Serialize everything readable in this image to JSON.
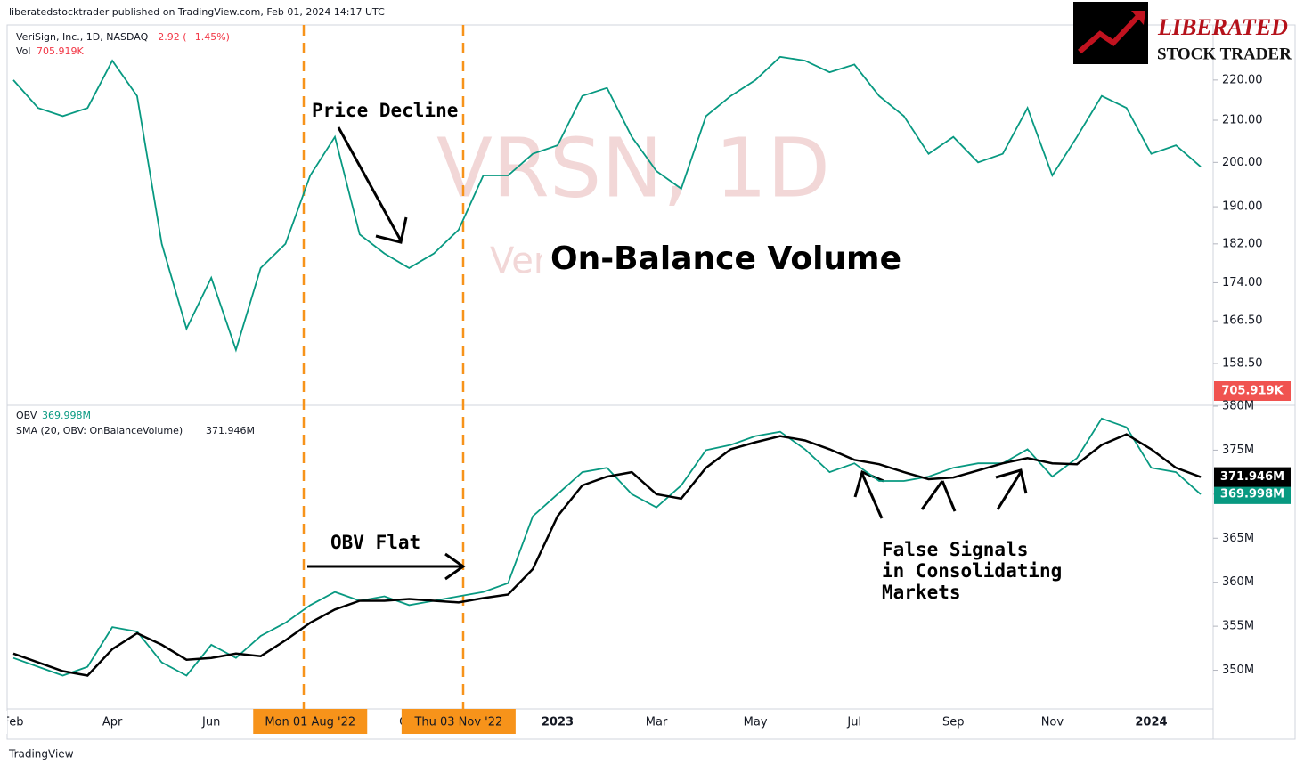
{
  "header": {
    "published": "liberatedstocktrader published on TradingView.com, Feb 01, 2024 14:17 UTC",
    "logo_line1": "LIBERATED",
    "logo_line2": "STOCK TRADER",
    "footer": "TradingView"
  },
  "chart_data": [
    {
      "type": "line",
      "title": "VeriSign, Inc., 1D, NASDAQ",
      "change": "−2.92 (−1.45%)",
      "volume_name": "Vol",
      "volume": "705.919K",
      "watermark": [
        "VRSN, 1D",
        "VeriSign, Inc."
      ],
      "annotations": [
        "Price Decline",
        "On-Balance Volume"
      ],
      "log_scale": true,
      "grid": false,
      "ylim": [
        151,
        234
      ],
      "yticks": [
        {
          "value": 220,
          "label": "220.00"
        },
        {
          "value": 210,
          "label": "210.00"
        },
        {
          "value": 200,
          "label": "200.00"
        },
        {
          "value": 190,
          "label": "190.00"
        },
        {
          "value": 182,
          "label": "182.00"
        },
        {
          "value": 174,
          "label": "174.00"
        },
        {
          "value": 166.5,
          "label": "166.50"
        },
        {
          "value": 158.5,
          "label": "158.50"
        }
      ],
      "series": [
        {
          "name": "VeriSign, Inc., 1D, NASDAQ",
          "color": "#089981",
          "values": [
            220,
            213,
            211,
            213,
            225,
            216,
            182,
            165,
            175,
            161,
            177,
            182,
            197,
            206,
            184,
            180,
            177,
            180,
            185,
            197,
            197,
            202,
            204,
            216,
            218,
            206,
            198,
            194,
            211,
            216,
            220,
            226,
            225,
            222,
            224,
            216,
            211,
            202,
            206,
            200,
            202,
            213,
            197,
            206,
            216,
            213,
            202,
            204,
            199
          ]
        }
      ]
    },
    {
      "type": "line",
      "grid": false,
      "ylim": [
        345.2,
        380.1
      ],
      "yticks": [
        {
          "value": 380,
          "label": "380M"
        },
        {
          "value": 375,
          "label": "375M"
        },
        {
          "value": 370,
          "label": "370M"
        },
        {
          "value": 365,
          "label": "365M"
        },
        {
          "value": 360,
          "label": "360M"
        },
        {
          "value": 355,
          "label": "355M"
        },
        {
          "value": 350,
          "label": "350M"
        }
      ],
      "categories": [
        "Feb",
        null,
        null,
        null,
        "Apr",
        null,
        null,
        null,
        "Jun",
        null,
        null,
        null,
        "Mon 01 Aug '22",
        null,
        null,
        null,
        "Oct",
        null,
        "Thu 03 Nov '22",
        null,
        null,
        null,
        "2023",
        null,
        null,
        null,
        "Mar",
        null,
        null,
        null,
        "May",
        null,
        null,
        null,
        "Jul",
        null,
        null,
        null,
        "Sep",
        null,
        null,
        null,
        "Nov",
        null,
        null,
        null,
        "2024",
        null,
        null
      ],
      "highlighted": [
        12,
        18
      ],
      "annotations": [
        "OBV Flat",
        "False Signals",
        "in Consolidating",
        "Markets"
      ],
      "series": [
        {
          "name": "OBV",
          "color": "#089981",
          "last_value_label": "369.998M",
          "values": [
            351.4,
            350.4,
            349.4,
            350.4,
            354.9,
            354.4,
            350.9,
            349.4,
            352.9,
            351.4,
            353.9,
            355.4,
            357.4,
            358.9,
            357.9,
            358.4,
            357.4,
            357.9,
            358.4,
            358.9,
            359.9,
            367.5,
            370.0,
            372.5,
            373.0,
            370.0,
            368.5,
            371.0,
            375.0,
            375.6,
            376.6,
            377.1,
            375.1,
            372.5,
            373.5,
            371.5,
            371.5,
            372.0,
            373.0,
            373.5,
            373.5,
            375.1,
            372.0,
            374.1,
            378.6,
            377.6,
            373.0,
            372.5,
            369.998
          ]
        },
        {
          "name": "SMA (20, OBV: OnBalanceVolume)",
          "color": "#000000",
          "last_value_label": "371.946M",
          "values": [
            351.9,
            350.9,
            349.9,
            349.4,
            352.4,
            354.2,
            352.9,
            351.2,
            351.4,
            351.9,
            351.6,
            353.4,
            355.4,
            356.9,
            357.9,
            357.9,
            358.1,
            357.9,
            357.7,
            358.2,
            358.6,
            361.5,
            367.5,
            371.0,
            372.0,
            372.5,
            370.0,
            369.5,
            373.0,
            375.1,
            375.9,
            376.6,
            376.1,
            375.1,
            373.9,
            373.4,
            372.5,
            371.7,
            371.9,
            372.7,
            373.5,
            374.1,
            373.5,
            373.4,
            375.6,
            376.8,
            375.1,
            373.0,
            371.946
          ]
        }
      ]
    }
  ]
}
